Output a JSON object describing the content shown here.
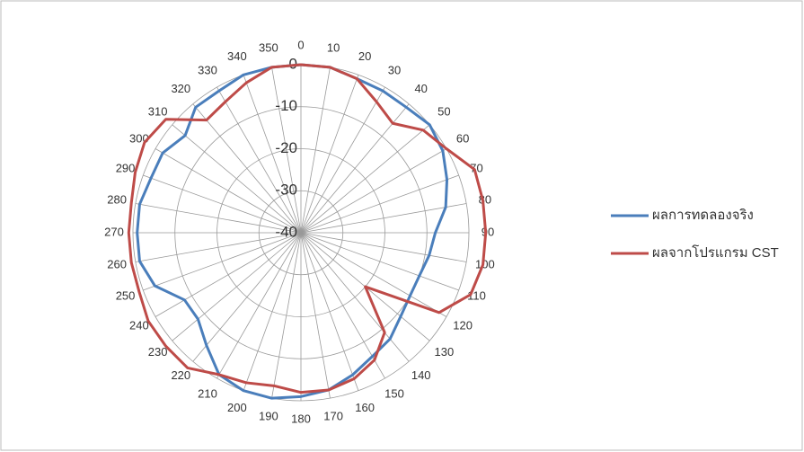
{
  "chart_data": {
    "type": "radar",
    "angles": [
      0,
      10,
      20,
      30,
      40,
      50,
      60,
      70,
      80,
      90,
      100,
      110,
      120,
      130,
      140,
      150,
      160,
      170,
      180,
      190,
      200,
      210,
      220,
      230,
      240,
      250,
      260,
      270,
      280,
      290,
      300,
      310,
      320,
      330,
      340,
      350
    ],
    "ylim": [
      -40,
      0
    ],
    "yticks": [
      0,
      -10,
      -20,
      -30,
      -40
    ],
    "grid": true,
    "legend": "right",
    "series": [
      {
        "name": "ผลการทดลองจริง",
        "color": "#4a7ebb",
        "values": [
          0,
          0,
          -1,
          -1,
          -1,
          0,
          -1,
          -3,
          -5,
          -8,
          -9,
          -10,
          -10,
          -9,
          -7,
          -6,
          -4,
          -2,
          -1,
          0,
          0,
          -1,
          -5,
          -8,
          -8,
          -3,
          -1,
          -1,
          -1,
          -2,
          -2,
          -4,
          -1,
          -1,
          0,
          0
        ]
      },
      {
        "name": "ผลจากโปรแกรม CST",
        "color": "#be4b48",
        "values": [
          0,
          0,
          -1,
          -4,
          -6,
          -2,
          0,
          4,
          4,
          4,
          4,
          3,
          -2,
          -20,
          -9,
          -5,
          -3,
          -2,
          -2,
          -3,
          -2,
          -1,
          2,
          2,
          2,
          1,
          1,
          1,
          1,
          2,
          3,
          2,
          -5,
          -4,
          -2,
          0
        ]
      }
    ]
  }
}
